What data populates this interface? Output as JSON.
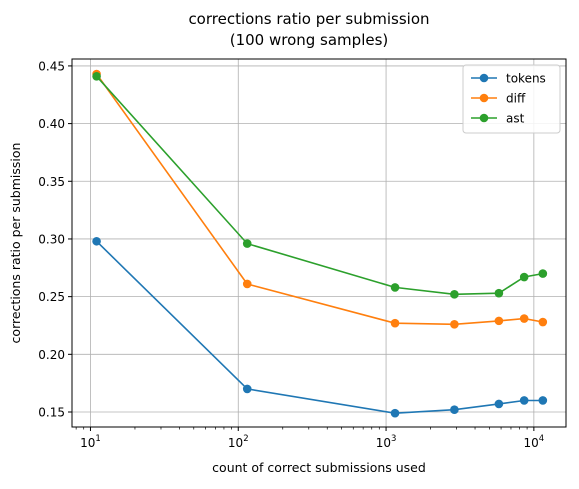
{
  "chart_data": {
    "type": "line",
    "title": "corrections ratio per submission",
    "subtitle": "(100 wrong samples)",
    "xlabel": "count of correct submissions used",
    "ylabel": "corrections ratio per submission",
    "xscale": "log",
    "xlim": [
      7.5,
      16500
    ],
    "ylim": [
      0.137,
      0.456
    ],
    "xticks": [
      {
        "value": 10,
        "base": "10",
        "exp": "1"
      },
      {
        "value": 100,
        "base": "10",
        "exp": "2"
      },
      {
        "value": 1000,
        "base": "10",
        "exp": "3"
      },
      {
        "value": 10000,
        "base": "10",
        "exp": "4"
      }
    ],
    "yticks": [
      {
        "value": 0.15,
        "label": "0.15"
      },
      {
        "value": 0.2,
        "label": "0.20"
      },
      {
        "value": 0.25,
        "label": "0.25"
      },
      {
        "value": 0.3,
        "label": "0.30"
      },
      {
        "value": 0.35,
        "label": "0.35"
      },
      {
        "value": 0.4,
        "label": "0.40"
      },
      {
        "value": 0.45,
        "label": "0.45"
      }
    ],
    "grid": true,
    "legend_position": "top-right",
    "x": [
      11,
      115,
      1150,
      2900,
      5800,
      8600,
      11500
    ],
    "series": [
      {
        "name": "tokens",
        "color": "#1f77b4",
        "values": [
          0.298,
          0.17,
          0.149,
          0.152,
          0.157,
          0.16,
          0.16
        ]
      },
      {
        "name": "diff",
        "color": "#ff7f0e",
        "values": [
          0.443,
          0.261,
          0.227,
          0.226,
          0.229,
          0.231,
          0.228
        ]
      },
      {
        "name": "ast",
        "color": "#2ca02c",
        "values": [
          0.441,
          0.296,
          0.258,
          0.252,
          0.253,
          0.267,
          0.27
        ]
      }
    ]
  }
}
